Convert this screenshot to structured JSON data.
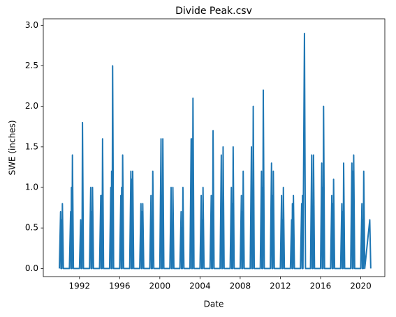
{
  "chart_data": {
    "type": "line",
    "title": "Divide Peak.csv",
    "xlabel": "Date",
    "ylabel": "SWE (inches)",
    "color": "#1f77b4",
    "x": [
      1990,
      1990.12,
      1990.16,
      1990.2,
      1990.25,
      1990.3,
      1990.4,
      1991,
      1991.12,
      1991.16,
      1991.2,
      1991.25,
      1991.3,
      1991.4,
      1992,
      1992.12,
      1992.16,
      1992.2,
      1992.25,
      1992.3,
      1992.4,
      1993,
      1993.12,
      1993.16,
      1993.2,
      1993.25,
      1993.3,
      1993.4,
      1994,
      1994.12,
      1994.16,
      1994.2,
      1994.25,
      1994.3,
      1994.4,
      1995,
      1995.12,
      1995.16,
      1995.2,
      1995.25,
      1995.3,
      1995.4,
      1996,
      1996.12,
      1996.16,
      1996.2,
      1996.25,
      1996.3,
      1996.4,
      1997,
      1997.12,
      1997.16,
      1997.2,
      1997.25,
      1997.3,
      1997.4,
      1998,
      1998.12,
      1998.16,
      1998.2,
      1998.25,
      1998.3,
      1998.4,
      1999,
      1999.12,
      1999.16,
      1999.2,
      1999.25,
      1999.3,
      1999.4,
      2000,
      2000.12,
      2000.16,
      2000.2,
      2000.25,
      2000.3,
      2000.4,
      2001,
      2001.12,
      2001.16,
      2001.2,
      2001.25,
      2001.3,
      2001.4,
      2002,
      2002.12,
      2002.16,
      2002.2,
      2002.25,
      2002.3,
      2002.4,
      2003,
      2003.12,
      2003.16,
      2003.2,
      2003.25,
      2003.3,
      2003.4,
      2004,
      2004.12,
      2004.16,
      2004.2,
      2004.25,
      2004.3,
      2004.4,
      2005,
      2005.12,
      2005.16,
      2005.2,
      2005.25,
      2005.3,
      2005.4,
      2006,
      2006.12,
      2006.16,
      2006.2,
      2006.25,
      2006.3,
      2006.4,
      2007,
      2007.12,
      2007.16,
      2007.2,
      2007.25,
      2007.3,
      2007.4,
      2008,
      2008.12,
      2008.16,
      2008.2,
      2008.25,
      2008.3,
      2008.4,
      2009,
      2009.12,
      2009.16,
      2009.2,
      2009.25,
      2009.3,
      2009.4,
      2010,
      2010.12,
      2010.16,
      2010.2,
      2010.25,
      2010.3,
      2010.4,
      2011,
      2011.12,
      2011.16,
      2011.2,
      2011.25,
      2011.3,
      2011.4,
      2012,
      2012.12,
      2012.16,
      2012.2,
      2012.25,
      2012.3,
      2012.4,
      2013,
      2013.12,
      2013.16,
      2013.2,
      2013.25,
      2013.3,
      2013.4,
      2014,
      2014.12,
      2014.16,
      2014.2,
      2014.25,
      2014.4,
      2014.5,
      2015,
      2015.12,
      2015.16,
      2015.2,
      2015.25,
      2015.3,
      2015.4,
      2016,
      2016.12,
      2016.16,
      2016.2,
      2016.25,
      2016.3,
      2016.4,
      2017,
      2017.12,
      2017.16,
      2017.2,
      2017.25,
      2017.3,
      2017.4,
      2018,
      2018.12,
      2018.16,
      2018.2,
      2018.25,
      2018.3,
      2018.4,
      2019,
      2019.12,
      2019.16,
      2019.2,
      2019.25,
      2019.3,
      2019.4,
      2020,
      2020.12,
      2020.16,
      2020.2,
      2020.25,
      2020.3,
      2020.4,
      2020.9,
      2021
    ],
    "values": [
      0,
      0.7,
      0,
      0.6,
      0,
      0.8,
      0,
      0,
      0.7,
      0,
      1.0,
      0,
      1.4,
      0,
      0,
      0.6,
      0,
      0.5,
      0,
      1.8,
      0,
      0,
      1.0,
      0,
      0.7,
      0,
      1.0,
      0,
      0,
      0.9,
      0,
      0.9,
      0,
      1.6,
      0,
      0,
      1.0,
      0,
      1.2,
      0,
      2.5,
      0,
      0,
      0.9,
      0,
      1.0,
      0,
      1.4,
      0,
      0,
      1.2,
      0,
      1.1,
      0,
      1.2,
      0,
      0,
      0.8,
      0,
      0.7,
      0,
      0.8,
      0,
      0,
      0.9,
      0,
      0.5,
      0,
      1.2,
      0,
      0,
      1.6,
      0,
      0.9,
      0,
      1.6,
      0,
      0,
      1.0,
      0,
      0.5,
      0,
      1.0,
      0,
      0,
      0.7,
      0,
      0.5,
      0,
      1.0,
      0,
      0,
      1.6,
      0,
      1.6,
      0,
      2.1,
      0,
      0,
      0.9,
      0,
      0.6,
      0,
      1.0,
      0,
      0,
      0.9,
      0,
      0.7,
      0,
      1.7,
      0,
      0,
      1.4,
      0,
      0.7,
      0,
      1.5,
      0,
      0,
      1.0,
      0,
      0.8,
      0,
      1.5,
      0,
      0,
      0.9,
      0,
      0.7,
      0,
      1.2,
      0,
      0,
      1.5,
      0,
      0.8,
      0,
      2.0,
      0,
      0,
      1.2,
      0,
      1.0,
      0,
      2.2,
      0,
      0,
      1.3,
      0,
      0.9,
      0,
      1.2,
      0,
      0,
      0.9,
      0,
      0.6,
      0,
      1.0,
      0,
      0,
      0.6,
      0,
      0.8,
      0,
      0.9,
      0,
      0,
      0.8,
      0,
      0.9,
      0,
      2.9,
      0,
      0,
      1.4,
      0,
      0.6,
      0,
      1.4,
      0,
      0,
      1.3,
      0,
      1.0,
      0,
      2.0,
      0,
      0,
      0.9,
      0,
      0.8,
      0,
      1.1,
      0,
      0,
      0.8,
      0,
      0.7,
      0,
      1.3,
      0,
      0,
      1.3,
      0,
      1.2,
      0,
      1.4,
      0,
      0,
      0.8,
      0,
      0.6,
      0,
      1.2,
      0,
      0.6,
      0
    ],
    "xlim": [
      1988.4,
      2022.4
    ],
    "xticks": [
      1992,
      1996,
      2000,
      2004,
      2008,
      2012,
      2016,
      2020
    ],
    "ylim": [
      -0.1,
      3.08
    ],
    "yticks": [
      {
        "value": 0,
        "label": "0.0"
      },
      0.5,
      {
        "value": 1,
        "label": "1.0"
      },
      1.5,
      {
        "value": 2,
        "label": "2.0"
      },
      2.5,
      {
        "value": 3,
        "label": "3.0"
      }
    ]
  }
}
